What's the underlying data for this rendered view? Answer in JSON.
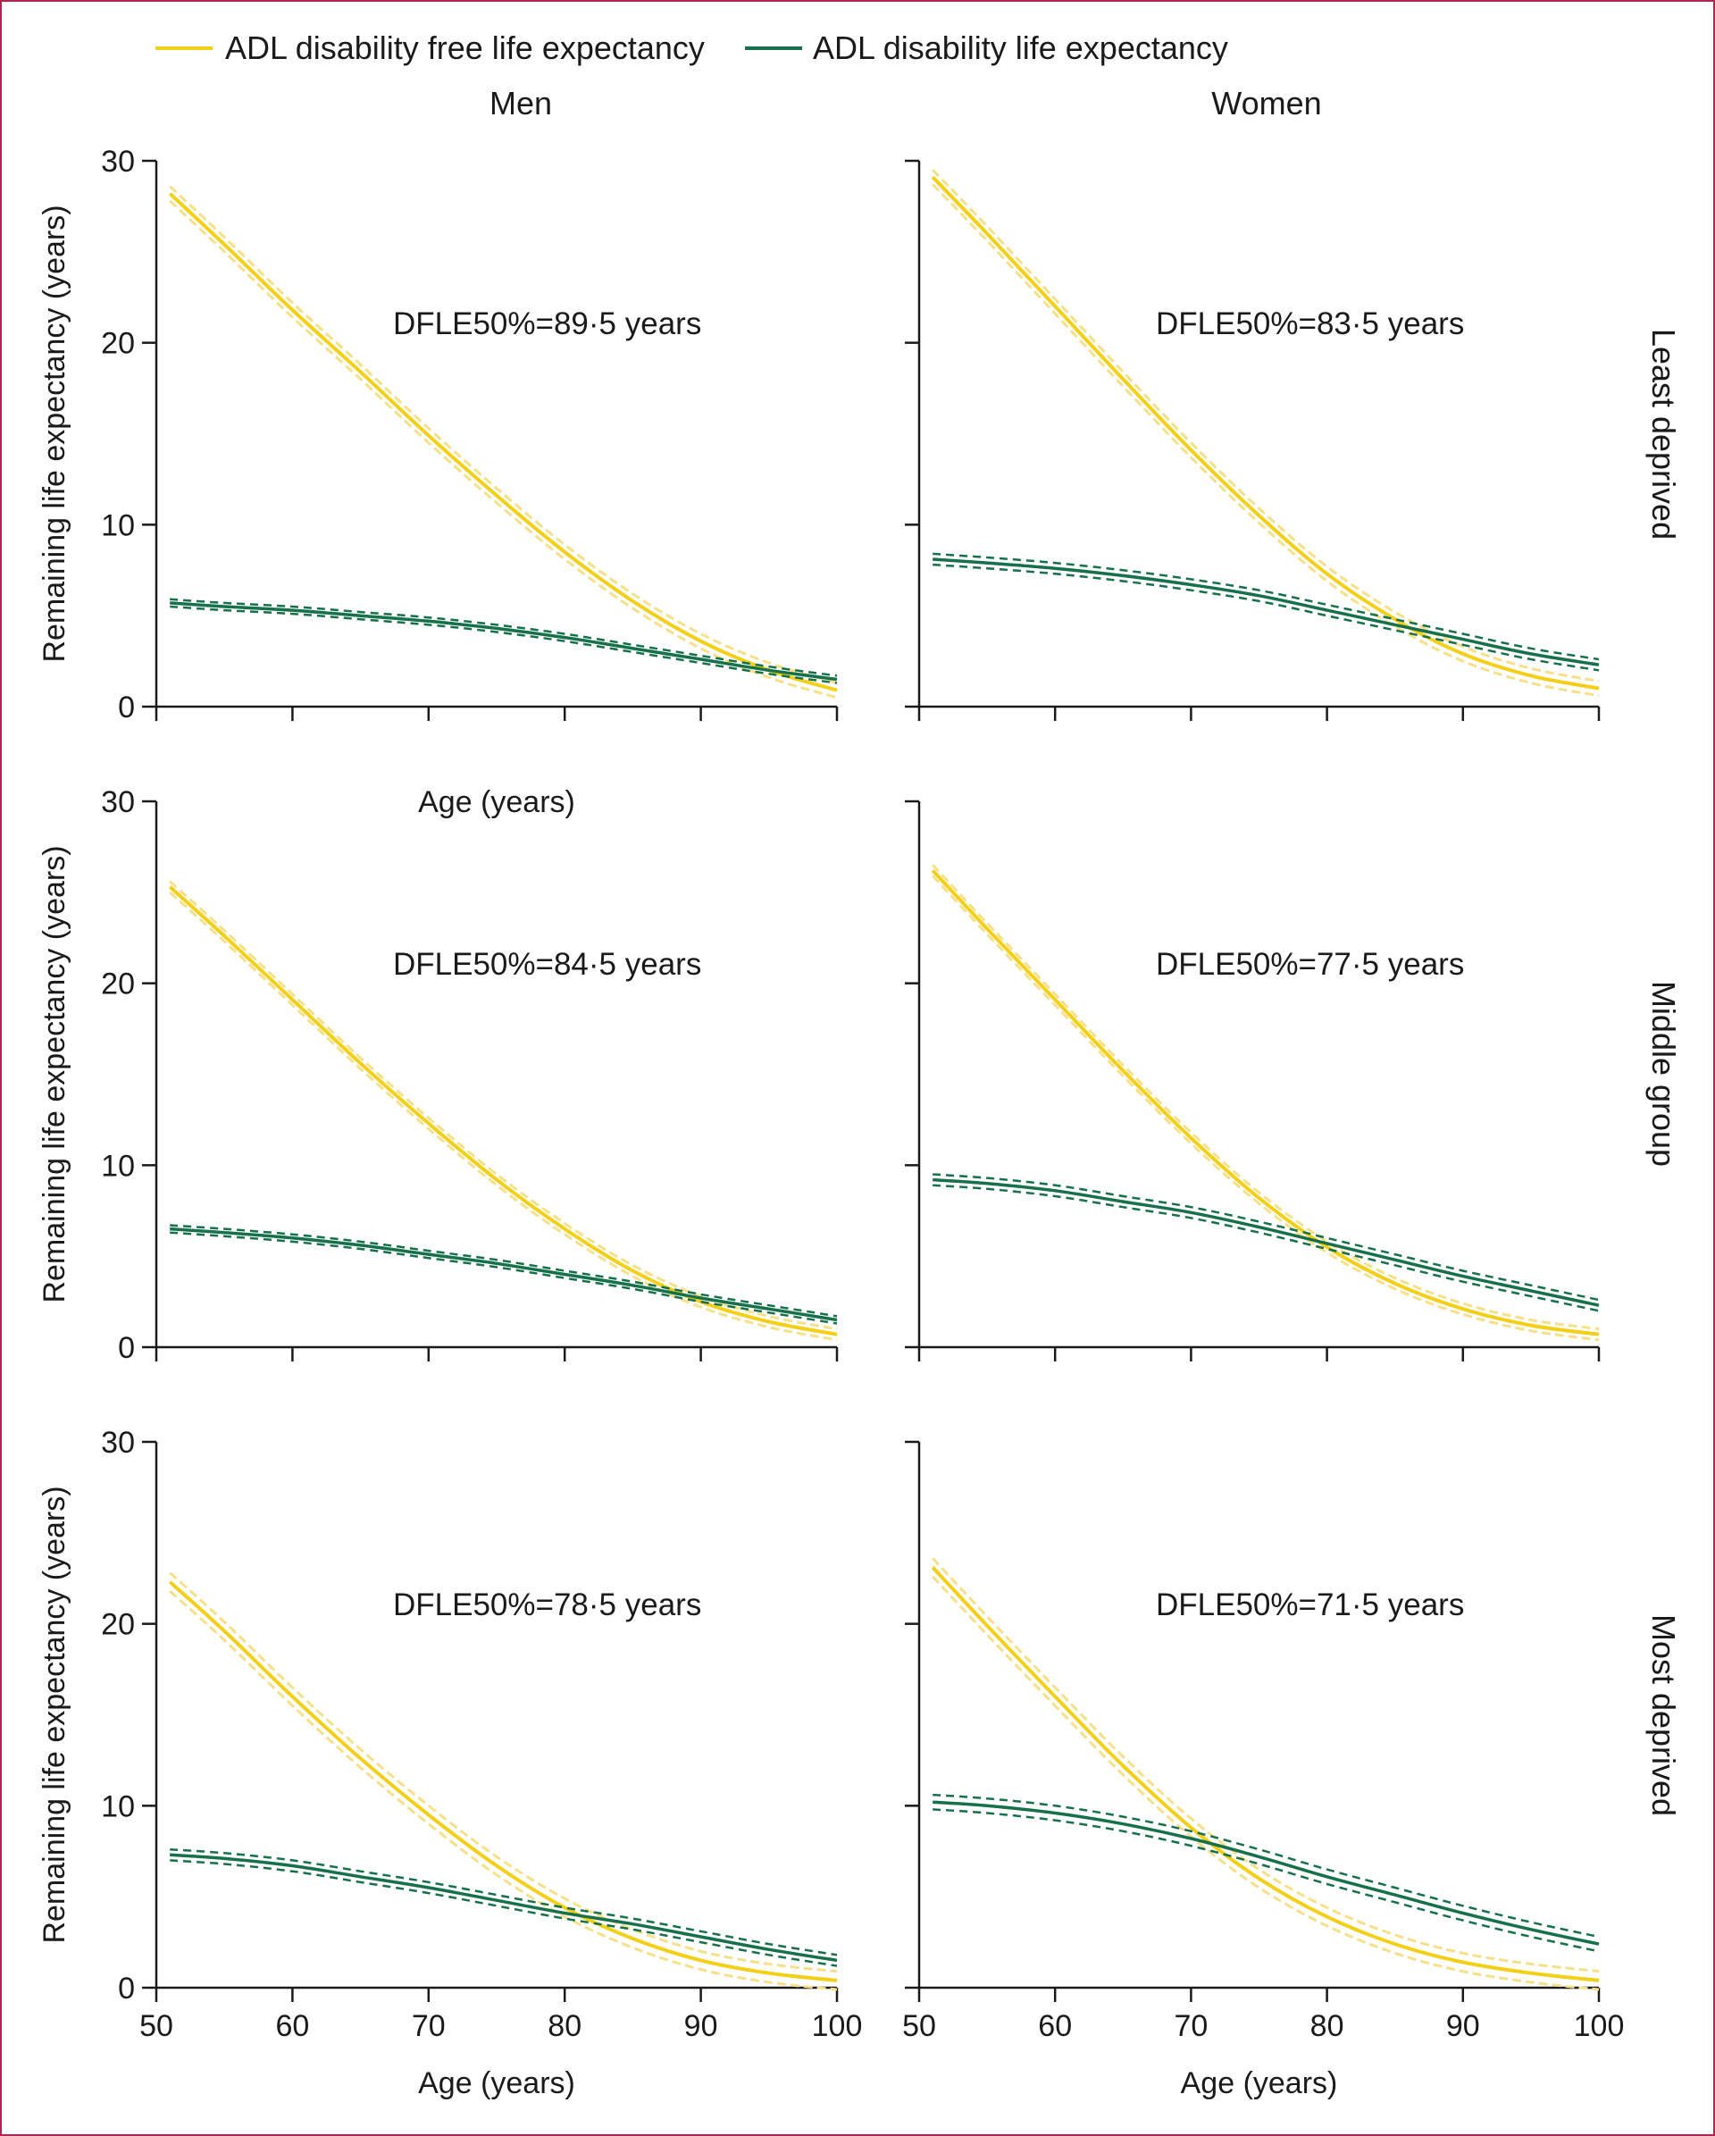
{
  "legend": {
    "free_label": "ADL disability free life expectancy",
    "disability_label": "ADL disability life expectancy"
  },
  "colors": {
    "free": "#f3cf17",
    "free_band": "#f6e08a",
    "disability": "#16704a",
    "axis": "#1a1a1a"
  },
  "column_titles": [
    "Men",
    "Women"
  ],
  "row_titles": [
    "Least deprived",
    "Middle group",
    "Most deprived"
  ],
  "chart_data": [
    {
      "type": "line",
      "panel": "Men / Least deprived",
      "annotation": "DFLE50%=89·5 years",
      "xlabel": "Age (years)",
      "ylabel": "Remaining life expectancy (years)",
      "xlim": [
        50,
        100
      ],
      "ylim": [
        0,
        30
      ],
      "xticks": [
        50,
        60,
        70,
        80,
        90,
        100
      ],
      "yticks": [
        0,
        10,
        20,
        30
      ],
      "x": [
        51,
        55,
        60,
        65,
        70,
        75,
        80,
        85,
        90,
        95,
        100
      ],
      "series": [
        {
          "name": "ADL disability free life expectancy",
          "values": [
            28.2,
            25.4,
            21.8,
            18.4,
            14.9,
            11.6,
            8.5,
            5.8,
            3.6,
            2.0,
            0.9
          ],
          "ci": 0.4
        },
        {
          "name": "ADL disability life expectancy",
          "values": [
            5.7,
            5.5,
            5.3,
            5.0,
            4.7,
            4.3,
            3.8,
            3.2,
            2.6,
            2.0,
            1.5
          ],
          "ci": 0.2
        }
      ]
    },
    {
      "type": "line",
      "panel": "Women / Least deprived",
      "annotation": "DFLE50%=83·5 years",
      "xlabel": "",
      "ylabel": "",
      "xlim": [
        50,
        100
      ],
      "ylim": [
        0,
        30
      ],
      "xticks": [
        50,
        60,
        70,
        80,
        90,
        100
      ],
      "yticks": [
        0,
        10,
        20,
        30
      ],
      "x": [
        51,
        55,
        60,
        65,
        70,
        75,
        80,
        85,
        90,
        95,
        100
      ],
      "series": [
        {
          "name": "ADL disability free life expectancy",
          "values": [
            29.1,
            26.0,
            22.0,
            18.0,
            14.1,
            10.5,
            7.3,
            4.8,
            2.9,
            1.7,
            1.0
          ],
          "ci": 0.4
        },
        {
          "name": "ADL disability life expectancy",
          "values": [
            8.1,
            7.9,
            7.6,
            7.2,
            6.7,
            6.1,
            5.3,
            4.5,
            3.7,
            2.9,
            2.3
          ],
          "ci": 0.3
        }
      ]
    },
    {
      "type": "line",
      "panel": "Men / Middle group",
      "annotation": "DFLE50%=84·5 years",
      "xlabel": "",
      "ylabel": "Remaining life expectancy (years)",
      "xlim": [
        50,
        100
      ],
      "ylim": [
        0,
        30
      ],
      "xticks": [
        50,
        60,
        70,
        80,
        90,
        100
      ],
      "yticks": [
        0,
        10,
        20,
        30
      ],
      "x": [
        51,
        55,
        60,
        65,
        70,
        75,
        80,
        85,
        90,
        95,
        100
      ],
      "series": [
        {
          "name": "ADL disability free life expectancy",
          "values": [
            25.3,
            22.6,
            19.1,
            15.6,
            12.3,
            9.2,
            6.5,
            4.2,
            2.5,
            1.4,
            0.7
          ],
          "ci": 0.3
        },
        {
          "name": "ADL disability life expectancy",
          "values": [
            6.5,
            6.3,
            6.0,
            5.6,
            5.1,
            4.6,
            4.0,
            3.4,
            2.7,
            2.1,
            1.5
          ],
          "ci": 0.2
        }
      ]
    },
    {
      "type": "line",
      "panel": "Women / Middle group",
      "annotation": "DFLE50%=77·5 years",
      "xlabel": "",
      "ylabel": "",
      "xlim": [
        50,
        100
      ],
      "ylim": [
        0,
        30
      ],
      "xticks": [
        50,
        60,
        70,
        80,
        90,
        100
      ],
      "yticks": [
        0,
        10,
        20,
        30
      ],
      "x": [
        51,
        55,
        60,
        65,
        70,
        75,
        80,
        85,
        90,
        95,
        100
      ],
      "series": [
        {
          "name": "ADL disability free life expectancy",
          "values": [
            26.2,
            23.0,
            19.1,
            15.2,
            11.5,
            8.2,
            5.5,
            3.5,
            2.1,
            1.2,
            0.7
          ],
          "ci": 0.3
        },
        {
          "name": "ADL disability life expectancy",
          "values": [
            9.2,
            9.0,
            8.6,
            8.0,
            7.4,
            6.6,
            5.7,
            4.8,
            3.9,
            3.1,
            2.3
          ],
          "ci": 0.3
        }
      ]
    },
    {
      "type": "line",
      "panel": "Men / Most deprived",
      "annotation": "DFLE50%=78·5 years",
      "xlabel": "Age (years)",
      "ylabel": "Remaining life expectancy (years)",
      "xlim": [
        50,
        100
      ],
      "ylim": [
        0,
        30
      ],
      "xticks": [
        50,
        60,
        70,
        80,
        90,
        100
      ],
      "yticks": [
        0,
        10,
        20,
        30
      ],
      "x": [
        51,
        55,
        60,
        65,
        70,
        75,
        80,
        85,
        90,
        95,
        100
      ],
      "series": [
        {
          "name": "ADL disability free life expectancy",
          "values": [
            22.3,
            19.6,
            16.0,
            12.6,
            9.5,
            6.7,
            4.4,
            2.7,
            1.5,
            0.8,
            0.4
          ],
          "ci": 0.5
        },
        {
          "name": "ADL disability life expectancy",
          "values": [
            7.3,
            7.1,
            6.7,
            6.1,
            5.5,
            4.8,
            4.1,
            3.5,
            2.8,
            2.1,
            1.5
          ],
          "ci": 0.3
        }
      ]
    },
    {
      "type": "line",
      "panel": "Women / Most deprived",
      "annotation": "DFLE50%=71·5 years",
      "xlabel": "Age (years)",
      "ylabel": "",
      "xlim": [
        50,
        100
      ],
      "ylim": [
        0,
        30
      ],
      "xticks": [
        50,
        60,
        70,
        80,
        90,
        100
      ],
      "yticks": [
        0,
        10,
        20,
        30
      ],
      "x": [
        51,
        55,
        60,
        65,
        70,
        75,
        80,
        85,
        90,
        95,
        100
      ],
      "series": [
        {
          "name": "ADL disability free life expectancy",
          "values": [
            23.1,
            19.9,
            16.0,
            12.2,
            8.8,
            6.0,
            3.9,
            2.4,
            1.4,
            0.8,
            0.4
          ],
          "ci": 0.5
        },
        {
          "name": "ADL disability life expectancy",
          "values": [
            10.2,
            10.0,
            9.6,
            9.0,
            8.2,
            7.2,
            6.1,
            5.1,
            4.1,
            3.2,
            2.4
          ],
          "ci": 0.4
        }
      ]
    }
  ]
}
